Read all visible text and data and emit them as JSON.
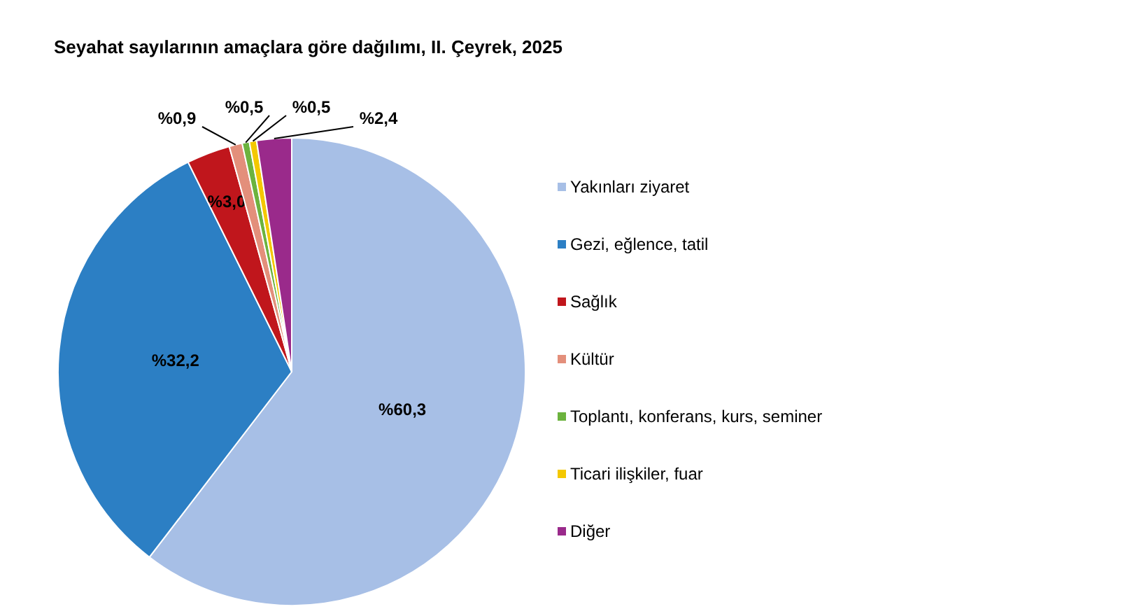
{
  "chart_data": {
    "type": "pie",
    "title": "Seyahat sayılarının amaçlara göre dağılımı, II. Çeyrek, 2025",
    "categories": [
      "Yakınları ziyaret",
      "Gezi, eğlence, tatil",
      "Sağlık",
      "Kültür",
      "Toplantı, konferans, kurs, seminer",
      "Ticari ilişkiler, fuar",
      "Diğer"
    ],
    "values": [
      60.3,
      32.2,
      3.0,
      0.9,
      0.5,
      0.5,
      2.4
    ],
    "colors": [
      "#a7bfe6",
      "#2c7fc4",
      "#c0161c",
      "#e38f7b",
      "#6cb33e",
      "#f4c800",
      "#9a2a8b"
    ],
    "value_labels": [
      "%60,3",
      "%32,2",
      "%3,0",
      "%0,9",
      "%0,5",
      "%0,5",
      "%2,4"
    ],
    "legend": "right"
  }
}
